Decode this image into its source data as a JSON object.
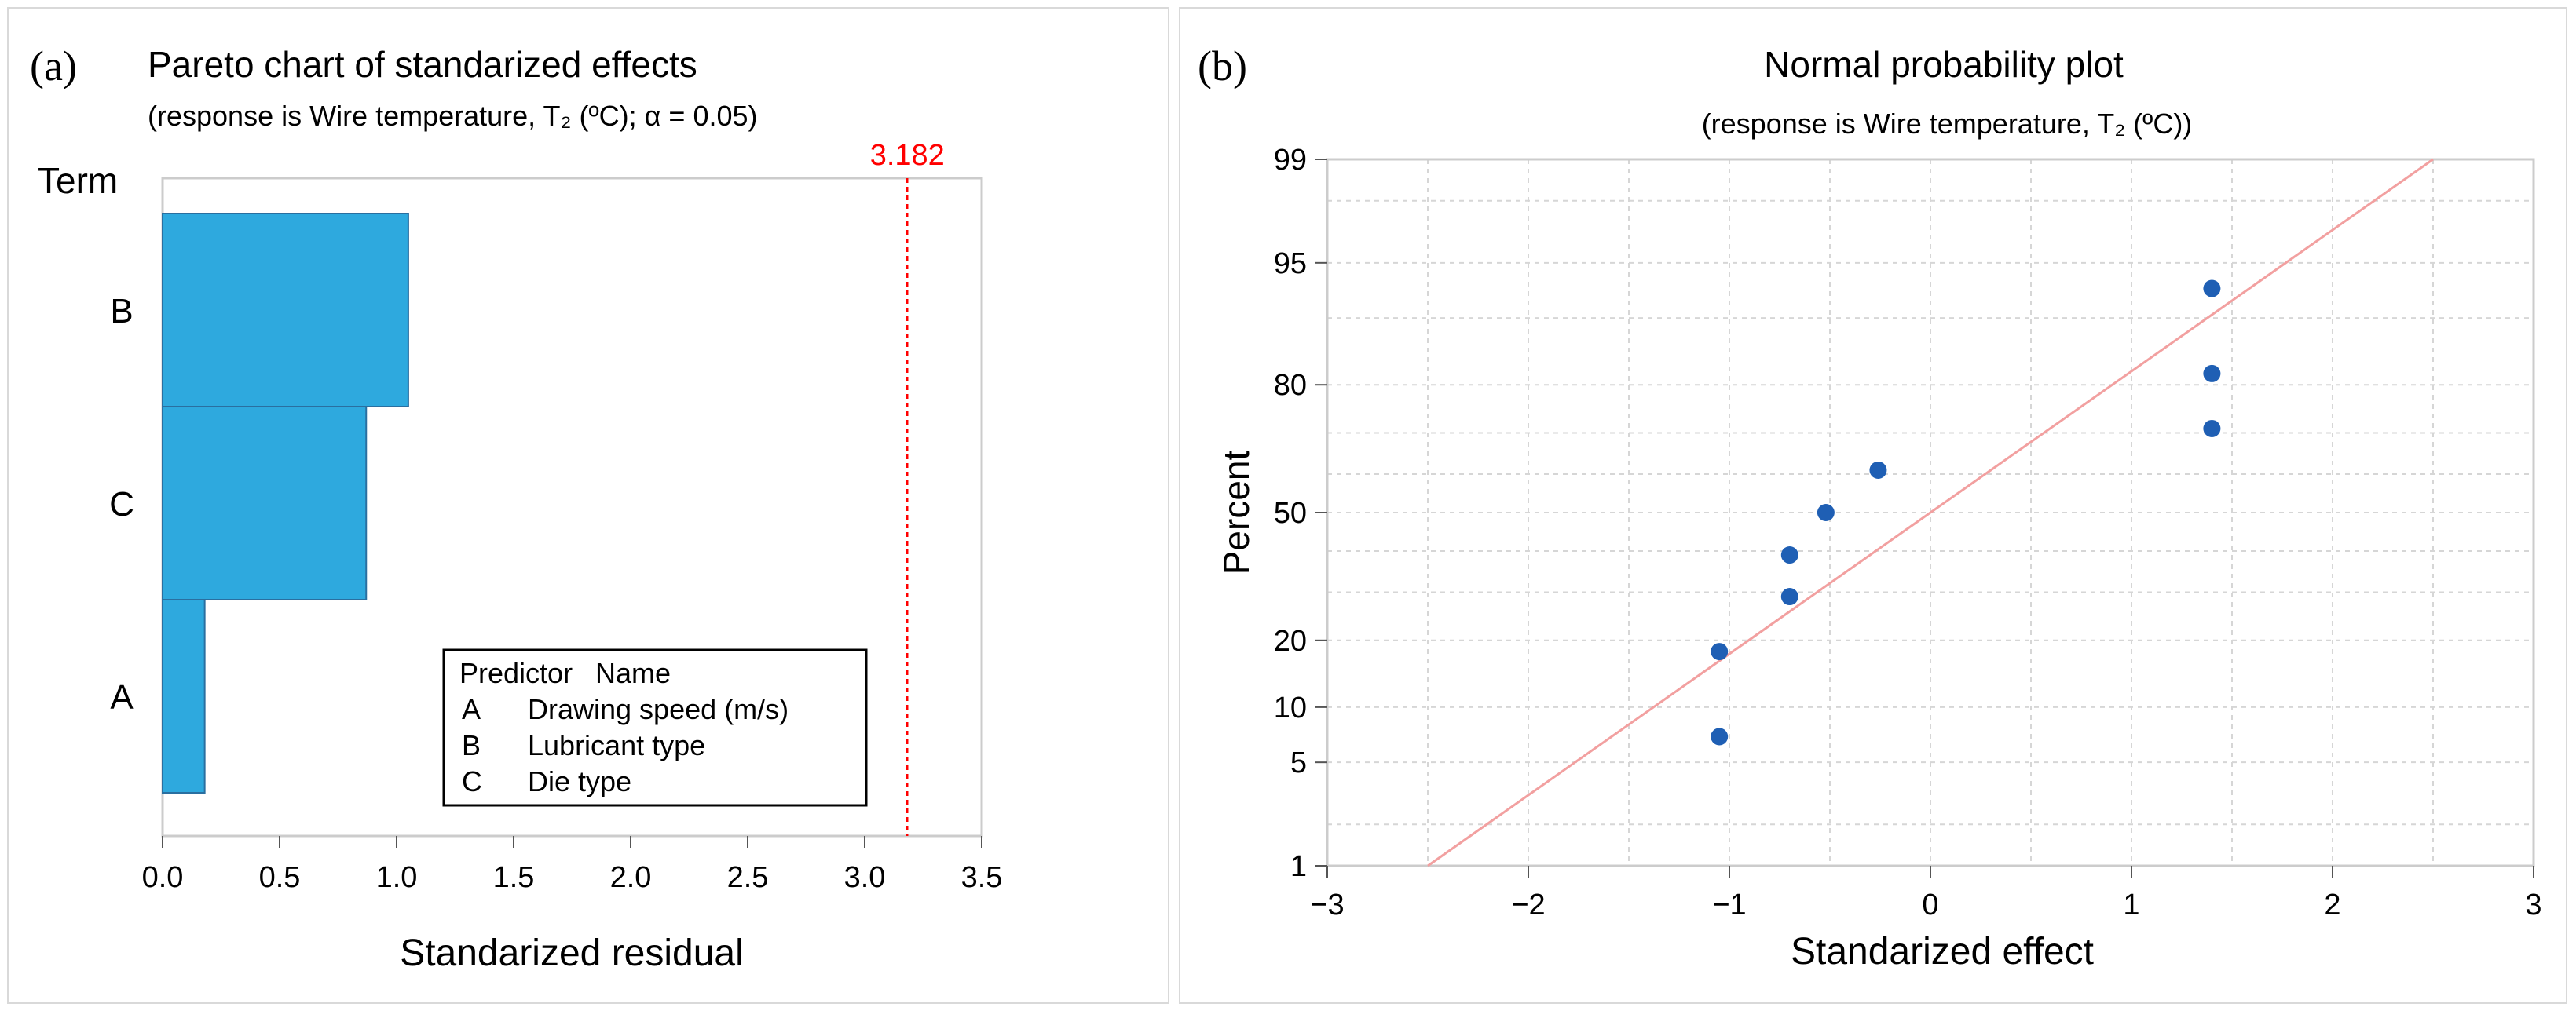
{
  "panels": [
    {
      "letter": "(a)",
      "title": "Pareto chart of standarized effects",
      "subtitle": "(response is Wire temperature, T₂ (ºC); α = 0.05)"
    },
    {
      "letter": "(b)",
      "title": "Normal probability plot",
      "subtitle": "(response is Wire temperature, T₂ (ºC))"
    }
  ],
  "chart_data": [
    {
      "type": "bar",
      "orientation": "horizontal",
      "title": "Pareto chart of standarized effects",
      "subtitle": "(response is Wire temperature, T₂ (ºC); α = 0.05)",
      "xlabel": "Standarized residual",
      "ylabel": "Term",
      "categories": [
        "B",
        "C",
        "A"
      ],
      "values": [
        1.05,
        0.87,
        0.18
      ],
      "xlim": [
        0,
        3.5
      ],
      "xticks": [
        "0.0",
        "0.5",
        "1.0",
        "1.5",
        "2.0",
        "2.5",
        "3.0",
        "3.5"
      ],
      "reference_line": {
        "value": 3.182,
        "label": "3.182",
        "color": "#ff0000"
      },
      "bar_color": "#2ea9de",
      "grid": false,
      "legend": {
        "placement": "bottom-right",
        "header": [
          "Predictor",
          "Name"
        ],
        "rows": [
          [
            "A",
            "Drawing speed (m/s)"
          ],
          [
            "B",
            "Lubricant type"
          ],
          [
            "C",
            "Die type"
          ]
        ]
      }
    },
    {
      "type": "scatter",
      "title": "Normal probability plot",
      "subtitle": "(response is Wire temperature, T₂ (ºC))",
      "xlabel": "Standarized effect",
      "ylabel": "Percent",
      "xlim": [
        -3,
        3
      ],
      "xticks": [
        "−3",
        "−2",
        "−1",
        "0",
        "1",
        "2",
        "3"
      ],
      "yscale": "normal-probability",
      "yticks": [
        1,
        5,
        10,
        20,
        50,
        80,
        95,
        99
      ],
      "ylim": [
        1,
        99
      ],
      "grid": true,
      "points": [
        {
          "x": -1.05,
          "y": 7
        },
        {
          "x": -1.05,
          "y": 18
        },
        {
          "x": -0.7,
          "y": 29
        },
        {
          "x": -0.7,
          "y": 39
        },
        {
          "x": -0.52,
          "y": 50
        },
        {
          "x": -0.26,
          "y": 61
        },
        {
          "x": 1.4,
          "y": 71
        },
        {
          "x": 1.4,
          "y": 82
        },
        {
          "x": 1.4,
          "y": 93
        }
      ],
      "fit_line": [
        {
          "x": -2.5,
          "y": 1
        },
        {
          "x": 2.5,
          "y": 99
        }
      ],
      "marker_color": "#1f5fb4",
      "line_color": "#f2a0a0"
    }
  ]
}
